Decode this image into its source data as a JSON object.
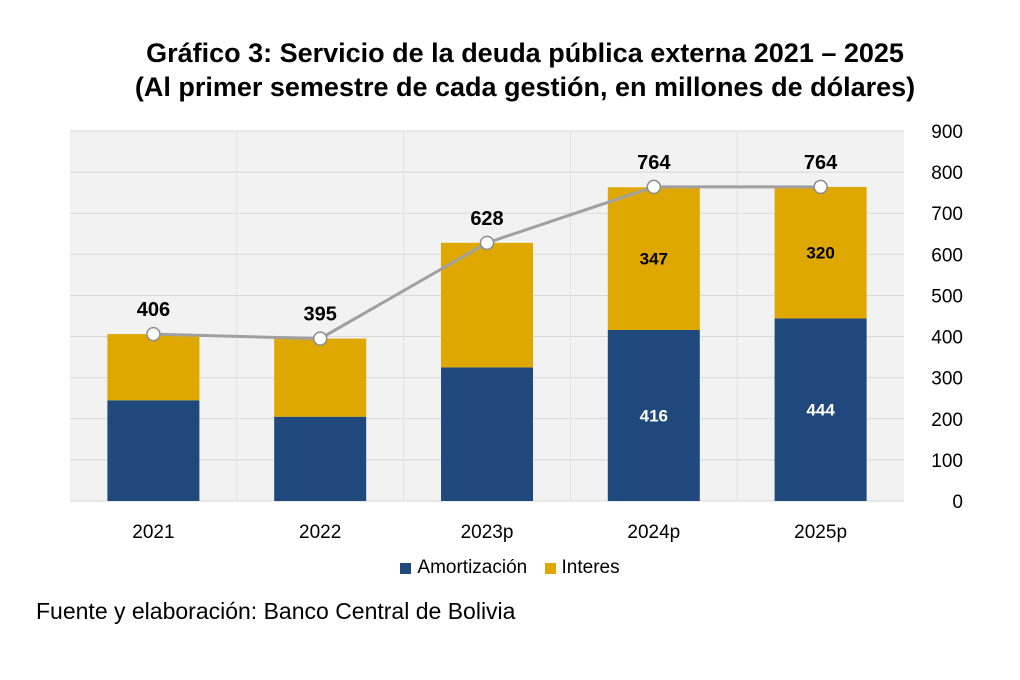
{
  "title_line1": "Gráfico 3: Servicio de la deuda pública externa 2021 – 2025",
  "title_line2": "(Al primer semestre de cada gestión, en millones de dólares)",
  "source": "Fuente y elaboración: Banco Central de Bolivia",
  "colors": {
    "amortizacion": "#1f497d",
    "interes": "#dfa800",
    "total_line": "#a0a0a0",
    "plot_bg": "#f2f2f2",
    "grid": "#d9d9d9"
  },
  "chart_data": {
    "type": "bar",
    "stacked": true,
    "categories": [
      "2021",
      "2022",
      "2023p",
      "2024p",
      "2025p"
    ],
    "series": [
      {
        "name": "Amortización",
        "values": [
          245,
          205,
          325,
          416,
          444
        ],
        "labels": [
          "",
          "",
          "",
          "416",
          "444"
        ]
      },
      {
        "name": "Interes",
        "values": [
          161,
          190,
          303,
          347,
          320
        ],
        "labels": [
          "",
          "",
          "",
          "347",
          "320"
        ]
      }
    ],
    "totals": {
      "values": [
        406,
        395,
        628,
        764,
        764
      ],
      "labels": [
        "406",
        "395",
        "628",
        "764",
        "764"
      ]
    },
    "ylim": [
      0,
      900
    ],
    "yticks": [
      "0",
      "100",
      "200",
      "300",
      "400",
      "500",
      "600",
      "700",
      "800",
      "900"
    ],
    "y_axis_side": "right",
    "grid": true,
    "legend_position": "bottom"
  }
}
